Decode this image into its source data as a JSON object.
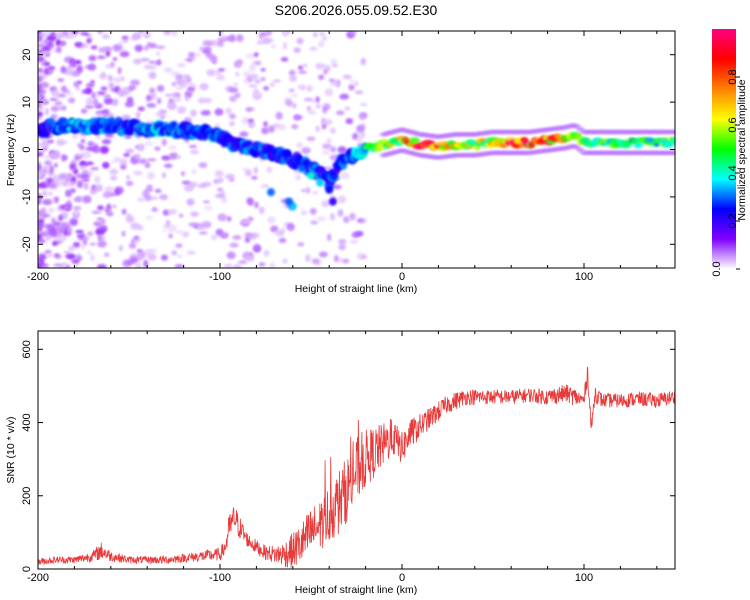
{
  "title": "S206.2026.055.09.52.E30",
  "colors": {
    "snr_line": "#e83a3a",
    "frame": "#000000",
    "background": "#ffffff"
  },
  "chart_data": [
    {
      "type": "heatmap",
      "name": "spectrogram",
      "title": "S206.2026.055.09.52.E30",
      "xlabel": "Height of straight line (km)",
      "ylabel": "Frequency (Hz)",
      "xlim": [
        -200,
        150
      ],
      "ylim": [
        -25,
        25
      ],
      "xticks": [
        -200,
        -100,
        0,
        100
      ],
      "yticks": [
        -20,
        -10,
        0,
        10,
        20
      ],
      "colorbar": {
        "label": "Normalized spectral amplitude",
        "range": [
          0.0,
          1.0
        ],
        "ticks": [
          0.0,
          0.2,
          0.4,
          0.6,
          0.8
        ],
        "tick_labels": [
          "0.0",
          "0.2",
          "0.4",
          "0.6",
          "0.8"
        ],
        "colormap": [
          "#ffffff",
          "#8000ff",
          "#0000ff",
          "#00ffff",
          "#00ff00",
          "#ffff00",
          "#ff8000",
          "#ff0000",
          "#ff0080"
        ]
      },
      "ridge": {
        "x": [
          -200,
          -190,
          -180,
          -170,
          -160,
          -150,
          -140,
          -130,
          -120,
          -110,
          -100,
          -90,
          -80,
          -70,
          -60,
          -55,
          -50,
          -45,
          -40,
          -35,
          -30,
          -25,
          -20,
          -15,
          -10,
          -5,
          0,
          10,
          20,
          30,
          40,
          50,
          60,
          70,
          80,
          90,
          95,
          100,
          110,
          120,
          130,
          140,
          150
        ],
        "y": [
          4,
          5,
          5,
          5,
          5,
          4.5,
          4.5,
          4.5,
          4,
          3.5,
          2.5,
          1,
          0,
          -1,
          -2,
          -3,
          -4,
          -5,
          -7,
          -3,
          -2,
          -1,
          0,
          0.5,
          1,
          1.5,
          2,
          1,
          0.5,
          1,
          1,
          1.5,
          1.5,
          1.5,
          2,
          2.5,
          3,
          1.5,
          1.5,
          1.5,
          1.5,
          1.5,
          1.5
        ],
        "amplitude": [
          0.2,
          0.3,
          0.35,
          0.35,
          0.3,
          0.3,
          0.35,
          0.35,
          0.3,
          0.3,
          0.3,
          0.3,
          0.3,
          0.3,
          0.3,
          0.3,
          0.3,
          0.3,
          0.3,
          0.3,
          0.3,
          0.35,
          0.45,
          0.55,
          0.6,
          0.65,
          0.7,
          0.95,
          0.9,
          0.65,
          0.6,
          0.7,
          0.9,
          0.9,
          0.85,
          0.75,
          0.6,
          0.55,
          0.5,
          0.5,
          0.5,
          0.5,
          0.5
        ]
      }
    },
    {
      "type": "line",
      "name": "snr",
      "xlabel": "Height of straight line (km)",
      "ylabel": "SNR (10 * v/v)",
      "xlim": [
        -200,
        150
      ],
      "ylim": [
        0,
        650
      ],
      "xticks": [
        -200,
        -100,
        0,
        100
      ],
      "yticks": [
        0,
        200,
        400,
        600
      ],
      "series": [
        {
          "name": "SNR",
          "x": [
            -200,
            -190,
            -180,
            -170,
            -165,
            -160,
            -150,
            -140,
            -130,
            -120,
            -110,
            -100,
            -97,
            -95,
            -92,
            -90,
            -85,
            -80,
            -75,
            -70,
            -65,
            -60,
            -55,
            -50,
            -45,
            -40,
            -35,
            -30,
            -25,
            -20,
            -15,
            -10,
            -5,
            0,
            5,
            10,
            15,
            20,
            25,
            30,
            35,
            40,
            50,
            60,
            70,
            80,
            90,
            95,
            100,
            102,
            104,
            106,
            110,
            120,
            130,
            140,
            150
          ],
          "y": [
            20,
            25,
            25,
            35,
            50,
            35,
            25,
            25,
            25,
            30,
            35,
            40,
            60,
            110,
            140,
            120,
            80,
            60,
            45,
            40,
            40,
            50,
            70,
            100,
            120,
            150,
            180,
            220,
            270,
            300,
            320,
            340,
            360,
            330,
            370,
            390,
            410,
            430,
            450,
            460,
            470,
            470,
            470,
            470,
            475,
            470,
            480,
            470,
            460,
            540,
            380,
            480,
            460,
            460,
            465,
            460,
            470
          ],
          "noise": [
            10,
            10,
            10,
            15,
            25,
            15,
            10,
            10,
            12,
            12,
            15,
            18,
            25,
            40,
            40,
            35,
            20,
            20,
            20,
            25,
            35,
            50,
            60,
            70,
            70,
            80,
            90,
            90,
            90,
            80,
            70,
            60,
            50,
            45,
            40,
            35,
            30,
            28,
            25,
            25,
            22,
            22,
            20,
            20,
            20,
            22,
            25,
            25,
            20,
            30,
            20,
            25,
            20,
            20,
            20,
            20,
            20
          ]
        }
      ]
    }
  ]
}
